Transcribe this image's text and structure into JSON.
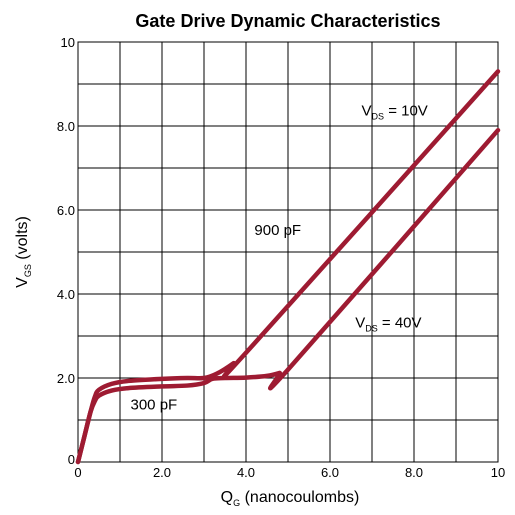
{
  "chart_data": {
    "type": "line",
    "title": "Gate Drive Dynamic Characteristics",
    "xlabel": {
      "main": "Q",
      "sub": "G",
      "rest": " (nanocoulombs)"
    },
    "ylabel": {
      "main": "V",
      "sub": "GS",
      "rest": " (volts)"
    },
    "xlim": [
      0,
      10
    ],
    "ylim": [
      0,
      10
    ],
    "grid": true,
    "x_ticks": [
      {
        "value": 0,
        "label": "0"
      },
      {
        "value": 2,
        "label": "2.0"
      },
      {
        "value": 4,
        "label": "4.0"
      },
      {
        "value": 6,
        "label": "6.0"
      },
      {
        "value": 8,
        "label": "8.0"
      },
      {
        "value": 10,
        "label": "10"
      }
    ],
    "y_ticks": [
      {
        "value": 0,
        "label": "0"
      },
      {
        "value": 2,
        "label": "2.0"
      },
      {
        "value": 4,
        "label": "4.0"
      },
      {
        "value": 6,
        "label": "6.0"
      },
      {
        "value": 8,
        "label": "8.0"
      },
      {
        "value": 10,
        "label": "10"
      }
    ],
    "series": [
      {
        "x": [
          0,
          0.15,
          0.3,
          0.4,
          0.5,
          0.8,
          1.2,
          2.0,
          2.6,
          3.0,
          3.3,
          3.7,
          4.0,
          10.0
        ],
        "y": [
          0,
          0.6,
          1.2,
          1.55,
          1.72,
          1.86,
          1.93,
          1.98,
          2.0,
          2.0,
          2.1,
          2.35,
          2.6,
          9.3
        ]
      },
      {
        "x": [
          0,
          0.15,
          0.3,
          0.4,
          0.5,
          0.8,
          1.2,
          2.0,
          2.6,
          3.0,
          3.2,
          3.5,
          4.0,
          4.5,
          4.8,
          5.0,
          10.0
        ],
        "y": [
          0,
          0.6,
          1.2,
          1.45,
          1.58,
          1.7,
          1.76,
          1.8,
          1.82,
          1.88,
          1.98,
          2.0,
          2.01,
          2.05,
          2.12,
          2.2,
          7.9
        ]
      }
    ],
    "annotations": [
      {
        "id": "vds10",
        "main": "V",
        "sub": "DS",
        "rest": " = 10V",
        "x": 6.75,
        "y": 8.25
      },
      {
        "id": "cap900",
        "text": "900 pF",
        "x": 4.2,
        "y": 5.4
      },
      {
        "id": "vds40",
        "main": "V",
        "sub": "DS",
        "rest": " = 40V",
        "x": 6.6,
        "y": 3.2
      },
      {
        "id": "cap300",
        "text": "300 pF",
        "x": 1.25,
        "y": 1.25
      }
    ]
  }
}
